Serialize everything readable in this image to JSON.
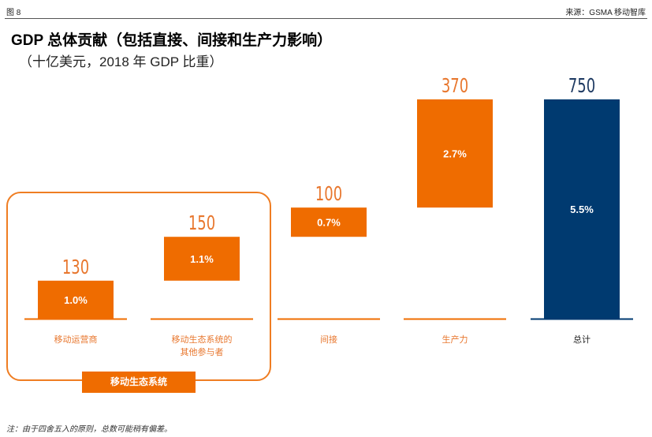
{
  "header": {
    "figure_label": "图 8",
    "source": "来源：GSMA 移动智库"
  },
  "title": "GDP 总体贡献（包括直接、间接和生产力影响）",
  "subtitle": "（十亿美元，2018 年 GDP 比重）",
  "group_label": "移动生态系统",
  "footnote": "注：由于四舍五入的原则，总数可能稍有偏差。",
  "colors": {
    "orange": "#ef6c00",
    "navy": "#003a70",
    "label_orange": "#e8772e",
    "total_label": "#1f3b63"
  },
  "chart_data": {
    "type": "bar",
    "subtype": "waterfall",
    "categories": [
      "移动运营商",
      "移动生态系统的其他参与者",
      "间接",
      "生产力",
      "总计"
    ],
    "category_lines": [
      [
        "移动运营商"
      ],
      [
        "移动生态系统的",
        "其他参与者"
      ],
      [
        "间接"
      ],
      [
        "生产力"
      ],
      [
        "总计"
      ]
    ],
    "values": [
      130,
      150,
      100,
      370,
      750
    ],
    "value_labels": [
      "130",
      "150",
      "100",
      "370",
      "750"
    ],
    "gdp_share_labels": [
      "1.0%",
      "1.1%",
      "0.7%",
      "2.7%",
      "5.5%"
    ],
    "is_total": [
      false,
      false,
      false,
      false,
      true
    ],
    "ylim": [
      0,
      750
    ],
    "grid": false,
    "legend": "none"
  }
}
